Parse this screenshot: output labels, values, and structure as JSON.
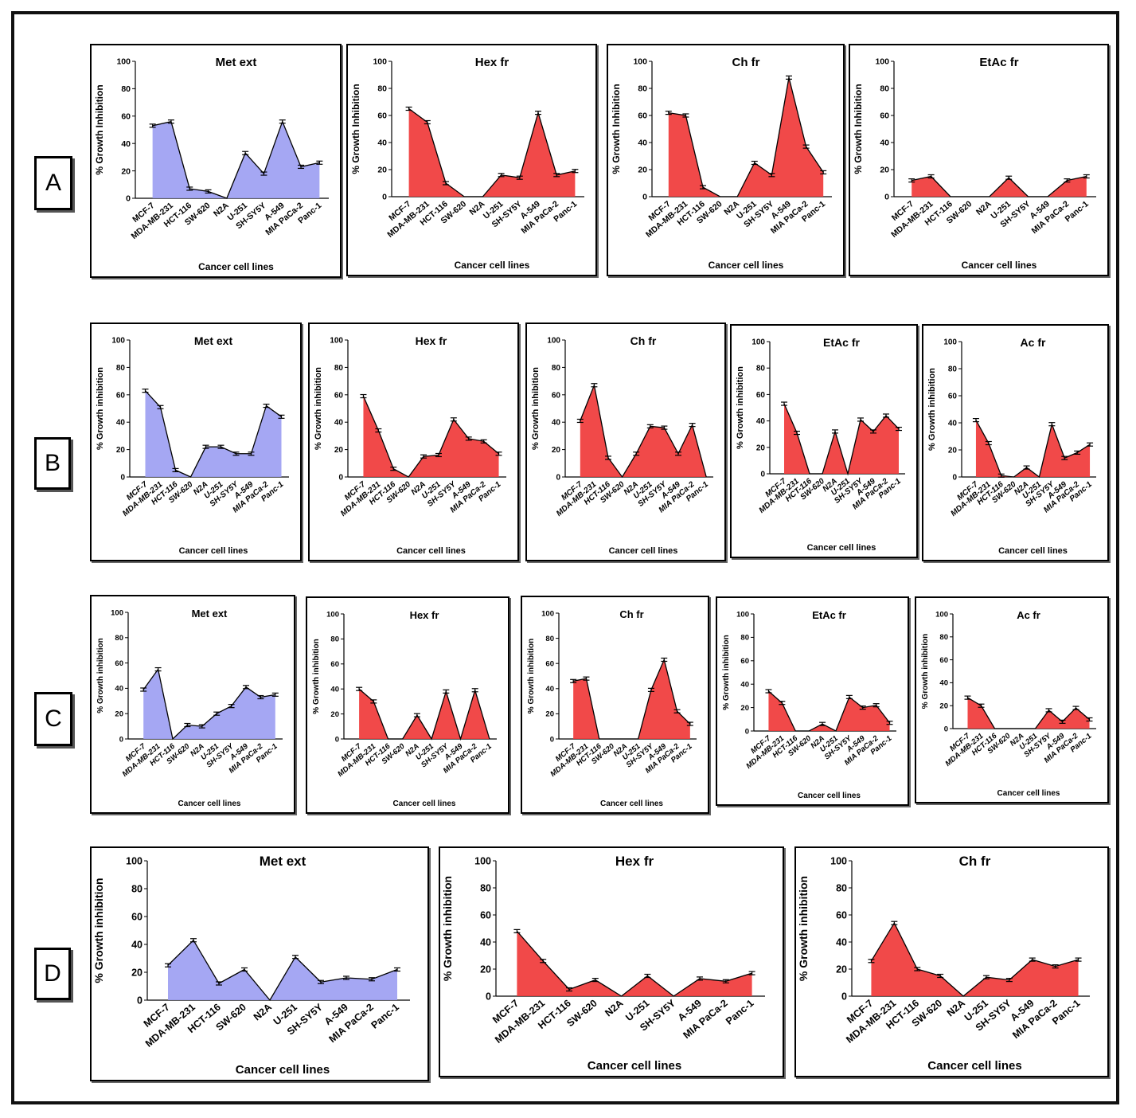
{
  "figure": {
    "rows": [
      {
        "label": "A",
        "xlabel": "Cancer cell lines",
        "ylabel": "% Growth Inhibition",
        "italic_ticks": false
      },
      {
        "label": "B",
        "xlabel": "Cancer cell lines",
        "ylabel": "% Growth inhibition",
        "italic_ticks": true
      },
      {
        "label": "C",
        "xlabel": "Cancer cell lines",
        "ylabel": "% Growth inhibition",
        "italic_ticks": true
      },
      {
        "label": "D",
        "xlabel": "Cancer cell lines",
        "ylabel": "% Growth inhibition",
        "italic_ticks": false
      }
    ],
    "colors": {
      "blue_fill": "#9d9ff2",
      "red_fill": "#f03a3a",
      "line": "#000000"
    }
  },
  "chart_data": [
    {
      "row": "A",
      "title": "Met ext",
      "type": "area",
      "color": "blue",
      "ylim": [
        0,
        100
      ],
      "yticks": [
        "0",
        "20",
        "40",
        "60",
        "80",
        "100"
      ],
      "categories": [
        "MCF-7",
        "MDA-MB-231",
        "HCT-116",
        "SW-620",
        "N2A",
        "U-251",
        "SH-SY5Y",
        "A-549",
        "MIA PaCa-2",
        "Panc-1"
      ],
      "values": [
        53,
        56,
        7,
        5,
        0,
        33,
        18,
        56,
        23,
        26
      ],
      "xlabel": "Cancer cell lines",
      "ylabel": "% Growth Inhibition"
    },
    {
      "row": "A",
      "title": "Hex fr",
      "type": "area",
      "color": "red",
      "ylim": [
        0,
        100
      ],
      "yticks": [
        "0",
        "20",
        "40",
        "60",
        "80",
        "100"
      ],
      "categories": [
        "MCF-7",
        "MDA-MB-231",
        "HCT-116",
        "SW-620",
        "N2A",
        "U-251",
        "SH-SY5Y",
        "A-549",
        "MIA PaCa-2",
        "Panc-1"
      ],
      "values": [
        65,
        55,
        10,
        0,
        0,
        16,
        14,
        62,
        16,
        19
      ],
      "xlabel": "Cancer cell lines",
      "ylabel": "% Growth Inhibition"
    },
    {
      "row": "A",
      "title": "Ch fr",
      "type": "area",
      "color": "red",
      "ylim": [
        0,
        100
      ],
      "yticks": [
        "0",
        "20",
        "40",
        "60",
        "80",
        "100"
      ],
      "categories": [
        "MCF-7",
        "MDA-MB-231",
        "HCT-116",
        "SW-620",
        "N2A",
        "U-251",
        "SH-SY5Y",
        "A-549",
        "MIA PaCa-2",
        "Panc-1"
      ],
      "values": [
        62,
        60,
        7,
        0,
        0,
        25,
        16,
        88,
        37,
        18
      ],
      "xlabel": "Cancer cell lines",
      "ylabel": "% Growth Inhibition"
    },
    {
      "row": "A",
      "title": "EtAc fr",
      "type": "area",
      "color": "red",
      "ylim": [
        0,
        100
      ],
      "yticks": [
        "0",
        "20",
        "40",
        "60",
        "80",
        "100"
      ],
      "categories": [
        "MCF-7",
        "MDA-MB-231",
        "HCT-116",
        "SW-620",
        "N2A",
        "U-251",
        "SH-SY5Y",
        "A-549",
        "MIA PaCa-2",
        "Panc-1"
      ],
      "values": [
        12,
        15,
        0,
        0,
        0,
        14,
        0,
        0,
        12,
        15
      ],
      "xlabel": "Cancer cell lines",
      "ylabel": "% Growth Inhibition"
    },
    {
      "row": "B",
      "title": "Met ext",
      "type": "area",
      "color": "blue",
      "ylim": [
        0,
        100
      ],
      "yticks": [
        "0",
        "20",
        "40",
        "60",
        "80",
        "100"
      ],
      "categories": [
        "MCF-7",
        "MDA-MB-231",
        "HCT-116",
        "SW-620",
        "N2A",
        "U-251",
        "SH-SY5Y",
        "A-549",
        "MIA PaCa-2",
        "Panc-1"
      ],
      "values": [
        63,
        51,
        5,
        0,
        22,
        22,
        17,
        17,
        52,
        44
      ],
      "xlabel": "Cancer cell lines",
      "ylabel": "% Growth inhibition"
    },
    {
      "row": "B",
      "title": "Hex fr",
      "type": "area",
      "color": "red",
      "ylim": [
        0,
        100
      ],
      "yticks": [
        "0",
        "20",
        "40",
        "60",
        "80",
        "100"
      ],
      "categories": [
        "MCF-7",
        "MDA-MB-231",
        "HCT-116",
        "SW-620",
        "N2A",
        "U-251",
        "SH-SY5Y",
        "A-549",
        "MIA PaCa-2",
        "Panc-1"
      ],
      "values": [
        59,
        34,
        6,
        0,
        15,
        16,
        42,
        28,
        26,
        17
      ],
      "xlabel": "Cancer cell lines",
      "ylabel": "% Growth inhibition"
    },
    {
      "row": "B",
      "title": "Ch fr",
      "type": "area",
      "color": "red",
      "ylim": [
        0,
        100
      ],
      "yticks": [
        "0",
        "20",
        "40",
        "60",
        "80",
        "100"
      ],
      "categories": [
        "MCF-7",
        "MDA-MB-231",
        "HCT-116",
        "SW-620",
        "N2A",
        "U-251",
        "SH-SY5Y",
        "A-549",
        "MIA PaCa-2",
        "Panc-1"
      ],
      "values": [
        41,
        67,
        14,
        0,
        17,
        37,
        36,
        17,
        38,
        0
      ],
      "xlabel": "Cancer cell lines",
      "ylabel": "% Growth inhibition"
    },
    {
      "row": "B",
      "title": "EtAc fr",
      "type": "area",
      "color": "red",
      "ylim": [
        0,
        100
      ],
      "yticks": [
        "0",
        "20",
        "40",
        "60",
        "80",
        "100"
      ],
      "categories": [
        "MCF-7",
        "MDA-MB-231",
        "HCT-116",
        "SW-620",
        "N2A",
        "U-251",
        "SH-SY5Y",
        "A-549",
        "MIA PaCa-2",
        "Panc-1"
      ],
      "values": [
        53,
        31,
        0,
        0,
        32,
        0,
        41,
        32,
        44,
        34
      ],
      "xlabel": "Cancer cell lines",
      "ylabel": "% Growth inhibition"
    },
    {
      "row": "B",
      "title": "Ac fr",
      "type": "area",
      "color": "red",
      "ylim": [
        0,
        100
      ],
      "yticks": [
        "0",
        "20",
        "40",
        "60",
        "80",
        "100"
      ],
      "categories": [
        "MCF-7",
        "MDA-MB-231",
        "HCT-116",
        "SW-620",
        "N2A",
        "U-251",
        "SH-SY5Y",
        "A-549",
        "MIA PaCa-2",
        "Panc-1"
      ],
      "values": [
        42,
        25,
        1,
        0,
        7,
        0,
        39,
        14,
        18,
        24
      ],
      "xlabel": "Cancer cell lines",
      "ylabel": "% Growth inhibition"
    },
    {
      "row": "C",
      "title": "Met ext",
      "type": "area",
      "color": "blue",
      "ylim": [
        0,
        100
      ],
      "yticks": [
        "0",
        "20",
        "40",
        "60",
        "80",
        "100"
      ],
      "categories": [
        "MCF-7",
        "MDA-MB-231",
        "HCT-116",
        "SW-620",
        "N2A",
        "U-251",
        "SH-SY5Y",
        "A-549",
        "MIA PaCa-2",
        "Panc-1"
      ],
      "values": [
        39,
        55,
        0,
        11,
        10,
        20,
        26,
        41,
        33,
        35
      ],
      "xlabel": "Cancer cell lines",
      "ylabel": "% Growth inhibition"
    },
    {
      "row": "C",
      "title": "Hex fr",
      "type": "area",
      "color": "red",
      "ylim": [
        0,
        100
      ],
      "yticks": [
        "0",
        "20",
        "40",
        "60",
        "80",
        "100"
      ],
      "categories": [
        "MCF-7",
        "MDA-MB-231",
        "HCT-116",
        "SW-620",
        "N2A",
        "U-251",
        "SH-SY5Y",
        "A-549",
        "MIA PaCa-2",
        "Panc-1"
      ],
      "values": [
        40,
        30,
        0,
        0,
        19,
        0,
        38,
        0,
        39,
        0
      ],
      "xlabel": "Cancer cell lines",
      "ylabel": "% Growth inhibition"
    },
    {
      "row": "C",
      "title": "Ch fr",
      "type": "area",
      "color": "red",
      "ylim": [
        0,
        100
      ],
      "yticks": [
        "0",
        "20",
        "40",
        "60",
        "80",
        "100"
      ],
      "categories": [
        "MCF-7",
        "MDA-MB-231",
        "HCT-116",
        "SW-620",
        "N2A",
        "U-251",
        "SH-SY5Y",
        "A-549",
        "MIA PaCa-2",
        "Panc-1"
      ],
      "values": [
        46,
        48,
        0,
        0,
        0,
        0,
        39,
        63,
        22,
        12
      ],
      "xlabel": "Cancer cell lines",
      "ylabel": "% Growth inhibition"
    },
    {
      "row": "C",
      "title": "EtAc fr",
      "type": "area",
      "color": "red",
      "ylim": [
        0,
        100
      ],
      "yticks": [
        "0",
        "20",
        "40",
        "60",
        "80",
        "100"
      ],
      "categories": [
        "MCF-7",
        "MDA-MB-231",
        "HCT-116",
        "SW-620",
        "N2A",
        "U-251",
        "SH-SY5Y",
        "A-549",
        "MIA PaCa-2",
        "Panc-1"
      ],
      "values": [
        34,
        24,
        0,
        0,
        6,
        0,
        29,
        20,
        22,
        7
      ],
      "xlabel": "Cancer cell lines",
      "ylabel": "% Growth inhibition"
    },
    {
      "row": "C",
      "title": "Ac fr",
      "type": "area",
      "color": "red",
      "ylim": [
        0,
        100
      ],
      "yticks": [
        "0",
        "20",
        "40",
        "60",
        "80",
        "100"
      ],
      "categories": [
        "MCF-7",
        "MDA-MB-231",
        "HCT-116",
        "SW-620",
        "N2A",
        "U-251",
        "SH-SY5Y",
        "A-549",
        "MIA PaCa-2",
        "Panc-1"
      ],
      "values": [
        27,
        20,
        0,
        0,
        0,
        0,
        16,
        6,
        18,
        8
      ],
      "xlabel": "Cancer cell lines",
      "ylabel": "% Growth inhibition"
    },
    {
      "row": "D",
      "title": "Met ext",
      "type": "area",
      "color": "blue",
      "ylim": [
        0,
        100
      ],
      "yticks": [
        "0",
        "20",
        "40",
        "60",
        "80",
        "100"
      ],
      "categories": [
        "MCF-7",
        "MDA-MB-231",
        "HCT-116",
        "SW-620",
        "N2A",
        "U-251",
        "SH-SY5Y",
        "A-549",
        "MIA PaCa-2",
        "Panc-1"
      ],
      "values": [
        25,
        43,
        12,
        22,
        0,
        31,
        13,
        16,
        15,
        22
      ],
      "xlabel": "Cancer cell lines",
      "ylabel": "% Growth inhibition"
    },
    {
      "row": "D",
      "title": "Hex fr",
      "type": "area",
      "color": "red",
      "ylim": [
        0,
        100
      ],
      "yticks": [
        "0",
        "20",
        "40",
        "60",
        "80",
        "100"
      ],
      "categories": [
        "MCF-7",
        "MDA-MB-231",
        "HCT-116",
        "SW-620",
        "N2A",
        "U-251",
        "SH-SY5Y",
        "A-549",
        "MIA PaCa-2",
        "Panc-1"
      ],
      "values": [
        48,
        26,
        5,
        12,
        0,
        15,
        0,
        13,
        11,
        17
      ],
      "xlabel": "Cancer cell lines",
      "ylabel": "% Growth inhibition"
    },
    {
      "row": "D",
      "title": "Ch fr",
      "type": "area",
      "color": "red",
      "ylim": [
        0,
        100
      ],
      "yticks": [
        "0",
        "20",
        "40",
        "60",
        "80",
        "100"
      ],
      "categories": [
        "MCF-7",
        "MDA-MB-231",
        "HCT-116",
        "SW-620",
        "N2A",
        "U-251",
        "SH-SY5Y",
        "A-549",
        "MIA PaCa-2",
        "Panc-1"
      ],
      "values": [
        26,
        54,
        20,
        15,
        0,
        14,
        12,
        27,
        22,
        27
      ],
      "xlabel": "Cancer cell lines",
      "ylabel": "% Growth inhibition"
    }
  ]
}
